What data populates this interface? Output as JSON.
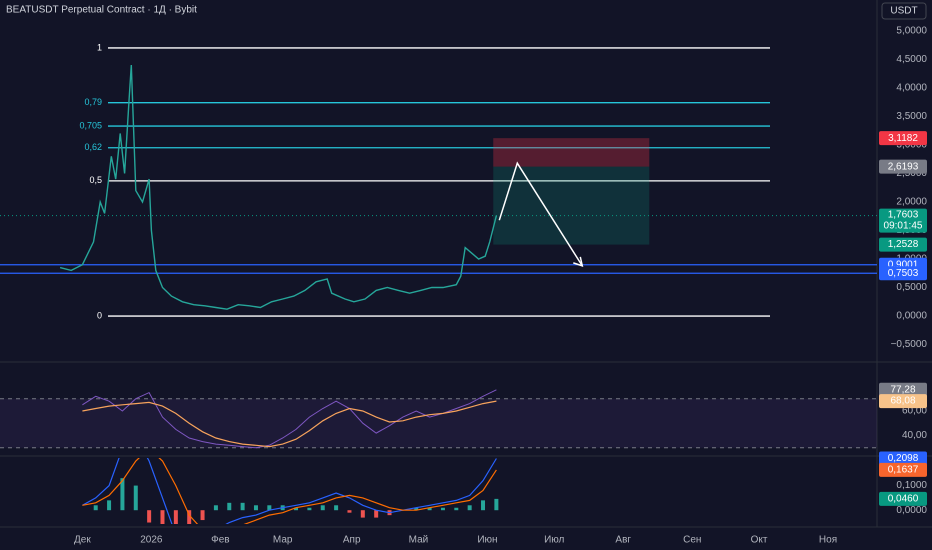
{
  "header": {
    "title": "BEATUSDT Perpetual Contract · 1Д · Bybit",
    "currency": "USDT"
  },
  "chart_data": [
    {
      "type": "line",
      "color": "#26a69a",
      "x": [
        -10,
        -5,
        0,
        5,
        8,
        10,
        13,
        15,
        17,
        19,
        21,
        22,
        24,
        27,
        30,
        31,
        33,
        36,
        40,
        45,
        50,
        55,
        60,
        65,
        70,
        75,
        80,
        85,
        90,
        95,
        100,
        105,
        110,
        112,
        118,
        122,
        127,
        132,
        137,
        142,
        147,
        152,
        157,
        162,
        168,
        170,
        172,
        175,
        178,
        181,
        183,
        186
      ],
      "values": [
        0.85,
        0.8,
        0.9,
        1.3,
        2.0,
        1.8,
        2.8,
        2.4,
        3.2,
        2.5,
        3.8,
        4.4,
        2.2,
        2.0,
        2.4,
        1.5,
        0.8,
        0.5,
        0.35,
        0.25,
        0.2,
        0.18,
        0.15,
        0.12,
        0.2,
        0.18,
        0.15,
        0.25,
        0.3,
        0.35,
        0.45,
        0.6,
        0.65,
        0.4,
        0.3,
        0.25,
        0.3,
        0.45,
        0.5,
        0.45,
        0.4,
        0.45,
        0.5,
        0.5,
        0.55,
        0.7,
        1.2,
        1.1,
        1.0,
        1.05,
        1.3,
        1.7603
      ],
      "xlim": [
        -37,
        357
      ],
      "xticks": [
        {
          "value": 0,
          "label": "Дек"
        },
        {
          "value": 31,
          "label": "2026"
        },
        {
          "value": 62,
          "label": "Фев"
        },
        {
          "value": 90,
          "label": "Мар"
        },
        {
          "value": 121,
          "label": "Апр"
        },
        {
          "value": 151,
          "label": "Май"
        },
        {
          "value": 182,
          "label": "Июн"
        },
        {
          "value": 212,
          "label": "Июл"
        },
        {
          "value": 243,
          "label": "Авг"
        },
        {
          "value": 274,
          "label": "Сен"
        },
        {
          "value": 304,
          "label": "Окт"
        },
        {
          "value": 335,
          "label": "Ноя"
        }
      ],
      "ylim": [
        -0.77,
        5.54
      ],
      "yticks": [
        {
          "value": 5,
          "label": "5,0000"
        },
        {
          "value": 4.5,
          "label": "4,5000"
        },
        {
          "value": 4,
          "label": "4,0000"
        },
        {
          "value": 3.5,
          "label": "3,5000"
        },
        {
          "value": 3,
          "label": "3,0000"
        },
        {
          "value": 2.5,
          "label": "2,5000"
        },
        {
          "value": 2,
          "label": "2,0000"
        },
        {
          "value": 1.5,
          "label": "1,5000"
        },
        {
          "value": 1,
          "label": "1,0000"
        },
        {
          "value": 0.5,
          "label": "0,5000"
        },
        {
          "value": 0,
          "label": "0,0000"
        },
        {
          "value": -0.5,
          "label": "−0,5000"
        }
      ],
      "fib_levels": [
        {
          "label": "1",
          "value": 4.7,
          "color": "#ffffff"
        },
        {
          "label": "0,79",
          "value": 3.74,
          "color": "#26c6da"
        },
        {
          "label": "0,705",
          "value": 3.33,
          "color": "#26c6da"
        },
        {
          "label": "0,62",
          "value": 2.95,
          "color": "#26c6da"
        },
        {
          "label": "0,5",
          "value": 2.37,
          "color": "#ffffff"
        },
        {
          "label": "0",
          "value": 0,
          "color": "#ffffff"
        }
      ],
      "levels": [
        {
          "value": 0.9001,
          "label": "0,9001",
          "color": "#2962ff"
        },
        {
          "value": 0.7503,
          "label": "0,7503",
          "color": "#2962ff"
        }
      ],
      "price_labels": [
        {
          "value": 3.1182,
          "label": "3,1182",
          "color": "#f23645"
        },
        {
          "value": 2.6193,
          "label": "2,6193",
          "color": "#787b86"
        },
        {
          "value": 1.7603,
          "label": "1,7603",
          "color": "#089981",
          "countdown": "09:01:45"
        },
        {
          "value": 1.2528,
          "label": "1,2528",
          "color": "#089981"
        }
      ],
      "position": {
        "x": [
          184.6,
          254.7
        ]
      },
      "projection": {
        "x": [
          187.3,
          195.4,
          224.6
        ],
        "values": [
          1.68,
          2.68,
          0.88
        ]
      }
    },
    {
      "type": "rsi",
      "x": [
        0,
        6,
        12,
        18,
        24,
        30,
        36,
        42,
        48,
        54,
        60,
        66,
        72,
        78,
        84,
        90,
        96,
        102,
        108,
        114,
        120,
        126,
        132,
        138,
        144,
        150,
        156,
        162,
        168,
        174,
        180,
        186
      ],
      "values": [
        65,
        72,
        68,
        60,
        70,
        75,
        55,
        45,
        38,
        35,
        33,
        32,
        31,
        30,
        32,
        38,
        45,
        55,
        62,
        68,
        62,
        50,
        42,
        48,
        55,
        60,
        55,
        58,
        62,
        66,
        72,
        77.28
      ],
      "ma": [
        60,
        62,
        64,
        65,
        66,
        67,
        64,
        58,
        50,
        43,
        38,
        35,
        33,
        32,
        31,
        33,
        37,
        44,
        52,
        58,
        62,
        60,
        55,
        51,
        52,
        55,
        57,
        58,
        60,
        63,
        66,
        68.08
      ],
      "ylim": [
        23.3,
        98.3
      ],
      "yticks": [
        {
          "value": 60,
          "label": "60,00"
        },
        {
          "value": 40,
          "label": "40,00"
        }
      ],
      "band": [
        30,
        70
      ],
      "value_labels": [
        {
          "value": 77.28,
          "label": "77,28",
          "color": "#787b86"
        },
        {
          "value": 68.08,
          "label": "68,08",
          "color": "#f7c38a"
        }
      ]
    },
    {
      "type": "macd",
      "x": [
        0,
        6,
        12,
        18,
        24,
        30,
        36,
        42,
        48,
        54,
        60,
        66,
        72,
        78,
        84,
        90,
        96,
        102,
        108,
        114,
        120,
        126,
        132,
        138,
        144,
        150,
        156,
        162,
        168,
        174,
        180,
        186
      ],
      "macd": [
        0.02,
        0.05,
        0.1,
        0.25,
        0.3,
        0.2,
        0.05,
        -0.1,
        -0.15,
        -0.12,
        -0.08,
        -0.05,
        -0.03,
        -0.02,
        0,
        0.01,
        0.02,
        0.03,
        0.05,
        0.07,
        0.05,
        0.02,
        0,
        -0.01,
        0,
        0.01,
        0.02,
        0.03,
        0.04,
        0.06,
        0.12,
        0.2098
      ],
      "signal": [
        0.02,
        0.03,
        0.06,
        0.12,
        0.2,
        0.25,
        0.2,
        0.1,
        -0.02,
        -0.08,
        -0.1,
        -0.08,
        -0.06,
        -0.04,
        -0.02,
        -0.01,
        0.01,
        0.02,
        0.03,
        0.05,
        0.06,
        0.05,
        0.03,
        0.01,
        0,
        0,
        0.01,
        0.02,
        0.03,
        0.04,
        0.08,
        0.1637
      ],
      "hist": [
        0,
        0.02,
        0.04,
        0.13,
        0.1,
        -0.05,
        -0.15,
        -0.2,
        -0.13,
        -0.04,
        0.02,
        0.03,
        0.03,
        0.02,
        0.02,
        0.02,
        0.01,
        0.01,
        0.02,
        0.02,
        -0.01,
        -0.03,
        -0.03,
        -0.02,
        0,
        0.01,
        0.01,
        0.01,
        0.01,
        0.02,
        0.04,
        0.046
      ],
      "ylim": [
        -0.056,
        0.212
      ],
      "yticks": [
        {
          "value": 0.1,
          "label": "0,1000"
        },
        {
          "value": 0,
          "label": "0,0000"
        }
      ],
      "value_labels": [
        {
          "value": 0.2098,
          "label": "0,2098",
          "color": "#2962ff"
        },
        {
          "value": 0.1637,
          "label": "0,1637",
          "color": "#f7652d"
        },
        {
          "value": 0.046,
          "label": "0,0460",
          "color": "#089981"
        }
      ]
    }
  ]
}
